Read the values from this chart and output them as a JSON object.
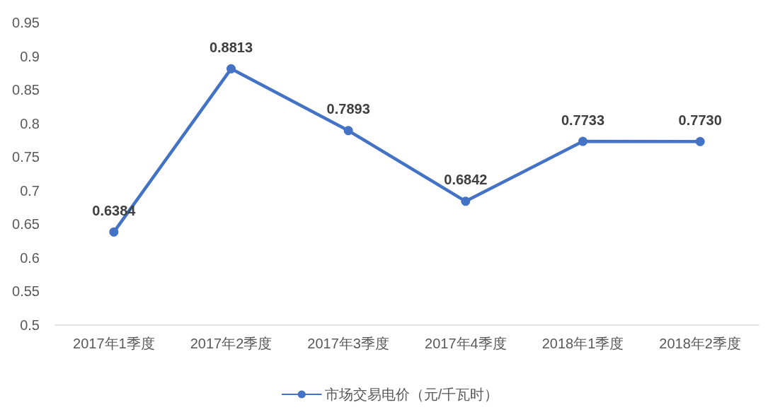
{
  "chart_data": {
    "type": "line",
    "categories": [
      "2017年1季度",
      "2017年2季度",
      "2017年3季度",
      "2017年4季度",
      "2018年1季度",
      "2018年2季度"
    ],
    "series": [
      {
        "name": "市场交易电价（元/千瓦时）",
        "color": "#4472c4",
        "values": [
          0.6384,
          0.8813,
          0.7893,
          0.6842,
          0.7733,
          0.773
        ],
        "value_labels": [
          "0.6384",
          "0.8813",
          "0.7893",
          "0.6842",
          "0.7733",
          "0.7730"
        ]
      }
    ],
    "ylim": [
      0.5,
      0.95
    ],
    "yticks": [
      0.5,
      0.55,
      0.6,
      0.65,
      0.7,
      0.75,
      0.8,
      0.85,
      0.9,
      0.95
    ],
    "grid": false,
    "legend": "bottom",
    "marker": "circle",
    "line_style": "solid"
  }
}
